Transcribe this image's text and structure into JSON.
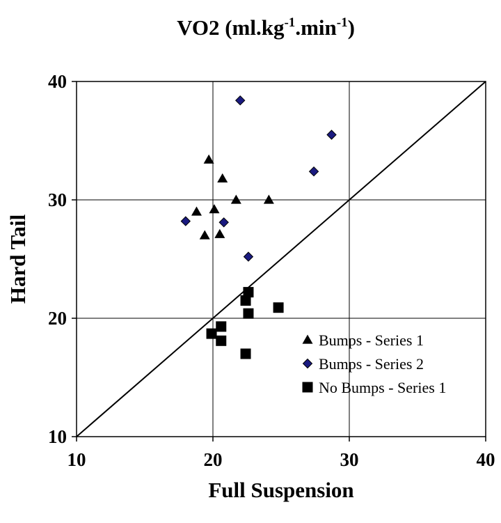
{
  "chart_data": {
    "type": "scatter",
    "title": {
      "main": "VO2 (ml.kg",
      "sup1": "-1",
      "mid": ".min",
      "sup2": "-1",
      "end": ")"
    },
    "xlabel": "Full Suspension",
    "ylabel": "Hard Tail",
    "xlim": [
      10,
      40
    ],
    "ylim": [
      10,
      40
    ],
    "xticks": [
      10,
      20,
      30,
      40
    ],
    "yticks": [
      10,
      20,
      30,
      40
    ],
    "grid": true,
    "legend_position": "lower-right",
    "reference_line": {
      "from": [
        10,
        10
      ],
      "to": [
        40,
        40
      ]
    },
    "series": [
      {
        "name": "Bumps - Series 1",
        "marker": "triangle",
        "color": "#000000",
        "points": [
          [
            19.7,
            33.4
          ],
          [
            20.7,
            31.8
          ],
          [
            18.8,
            29.0
          ],
          [
            20.1,
            29.2
          ],
          [
            21.7,
            30.0
          ],
          [
            24.1,
            30.0
          ],
          [
            19.4,
            27.0
          ],
          [
            20.5,
            27.1
          ]
        ]
      },
      {
        "name": "Bumps - Series 2",
        "marker": "diamond",
        "color": "#1a1a80",
        "points": [
          [
            22.0,
            38.4
          ],
          [
            28.7,
            35.5
          ],
          [
            27.4,
            32.4
          ],
          [
            18.0,
            28.2
          ],
          [
            20.8,
            28.1
          ],
          [
            22.6,
            25.2
          ]
        ]
      },
      {
        "name": "No Bumps - Series 1",
        "marker": "square",
        "color": "#000000",
        "points": [
          [
            22.6,
            22.2
          ],
          [
            22.4,
            21.5
          ],
          [
            24.8,
            20.9
          ],
          [
            22.6,
            20.4
          ],
          [
            20.6,
            19.3
          ],
          [
            19.9,
            18.7
          ],
          [
            20.6,
            18.1
          ],
          [
            22.4,
            17.0
          ]
        ]
      }
    ]
  }
}
